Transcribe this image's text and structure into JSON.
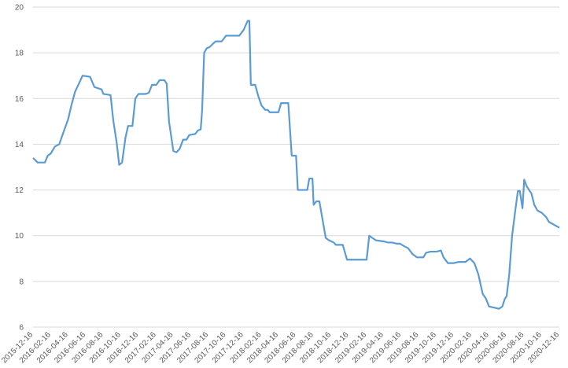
{
  "chart_data": {
    "type": "line",
    "color": "#5b9bd5",
    "grid": true,
    "xlim": [
      "2015-12-16",
      "2020-12-16"
    ],
    "xticks": [
      "2015-12-16",
      "2016-02-16",
      "2016-04-16",
      "2016-06-16",
      "2016-08-16",
      "2016-10-16",
      "2016-12-16",
      "2017-02-16",
      "2017-04-16",
      "2017-06-16",
      "2017-08-16",
      "2017-10-16",
      "2017-12-16",
      "2018-02-16",
      "2018-04-16",
      "2018-06-16",
      "2018-08-16",
      "2018-10-16",
      "2018-12-16",
      "2019-02-16",
      "2019-04-16",
      "2019-06-16",
      "2019-08-16",
      "2019-10-16",
      "2019-12-16",
      "2020-02-16",
      "2020-04-16",
      "2020-06-16",
      "2020-08-16",
      "2020-10-16",
      "2020-12-16"
    ],
    "ylim": [
      6,
      20
    ],
    "yticks": [
      6,
      8,
      10,
      12,
      14,
      16,
      18,
      20
    ],
    "x": [
      "2015-12-16",
      "2016-01-01",
      "2016-01-26",
      "2016-02-05",
      "2016-02-16",
      "2016-03-01",
      "2016-03-16",
      "2016-03-27",
      "2016-04-16",
      "2016-04-27",
      "2016-05-10",
      "2016-05-25",
      "2016-06-05",
      "2016-07-01",
      "2016-07-16",
      "2016-08-10",
      "2016-08-16",
      "2016-09-10",
      "2016-09-20",
      "2016-10-01",
      "2016-10-10",
      "2016-10-20",
      "2016-11-01",
      "2016-11-10",
      "2016-11-25",
      "2016-12-05",
      "2016-12-16",
      "2017-01-10",
      "2017-01-21",
      "2017-02-01",
      "2017-02-16",
      "2017-02-27",
      "2017-03-16",
      "2017-03-24",
      "2017-04-01",
      "2017-04-16",
      "2017-04-27",
      "2017-05-08",
      "2017-05-20",
      "2017-06-01",
      "2017-06-10",
      "2017-07-01",
      "2017-07-10",
      "2017-07-20",
      "2017-07-25",
      "2017-08-01",
      "2017-08-10",
      "2017-08-20",
      "2017-09-01",
      "2017-09-10",
      "2017-10-01",
      "2017-10-16",
      "2017-12-01",
      "2017-12-16",
      "2017-12-30",
      "2018-01-05",
      "2018-01-10",
      "2018-01-25",
      "2018-02-05",
      "2018-02-16",
      "2018-03-01",
      "2018-03-10",
      "2018-03-16",
      "2018-04-16",
      "2018-04-25",
      "2018-05-20",
      "2018-06-01",
      "2018-06-16",
      "2018-06-22",
      "2018-07-25",
      "2018-08-01",
      "2018-08-12",
      "2018-08-16",
      "2018-08-25",
      "2018-09-05",
      "2018-09-16",
      "2018-09-27",
      "2018-10-08",
      "2018-10-25",
      "2018-11-01",
      "2018-11-25",
      "2018-12-10",
      "2019-02-16",
      "2019-02-25",
      "2019-03-08",
      "2019-03-20",
      "2019-04-16",
      "2019-05-01",
      "2019-05-16",
      "2019-06-01",
      "2019-06-12",
      "2019-06-25",
      "2019-07-10",
      "2019-07-25",
      "2019-08-10",
      "2019-09-01",
      "2019-09-10",
      "2019-09-25",
      "2019-10-16",
      "2019-11-01",
      "2019-11-10",
      "2019-11-25",
      "2019-12-16",
      "2020-01-01",
      "2020-01-25",
      "2020-02-10",
      "2020-02-25",
      "2020-03-10",
      "2020-03-25",
      "2020-04-05",
      "2020-04-16",
      "2020-05-05",
      "2020-05-20",
      "2020-06-01",
      "2020-06-10",
      "2020-06-16",
      "2020-06-25",
      "2020-07-05",
      "2020-07-16",
      "2020-07-25",
      "2020-08-01",
      "2020-08-10",
      "2020-08-16",
      "2020-08-25",
      "2020-09-10",
      "2020-09-20",
      "2020-10-01",
      "2020-10-16",
      "2020-11-01",
      "2020-11-10",
      "2020-12-16"
    ],
    "values": [
      13.4,
      13.2,
      13.2,
      13.5,
      13.6,
      13.9,
      14.0,
      14.4,
      15.1,
      15.7,
      16.3,
      16.7,
      17.0,
      16.95,
      16.5,
      16.4,
      16.2,
      16.15,
      15.0,
      14.1,
      13.1,
      13.2,
      14.3,
      14.8,
      14.8,
      16.0,
      16.2,
      16.2,
      16.25,
      16.6,
      16.6,
      16.8,
      16.8,
      16.65,
      15.0,
      13.7,
      13.65,
      13.8,
      14.2,
      14.2,
      14.4,
      14.45,
      14.6,
      14.65,
      15.5,
      18.0,
      18.2,
      18.25,
      18.4,
      18.5,
      18.5,
      18.75,
      18.75,
      19.0,
      19.4,
      19.4,
      16.6,
      16.6,
      16.1,
      15.7,
      15.5,
      15.5,
      15.4,
      15.4,
      15.8,
      15.8,
      13.5,
      13.5,
      12.0,
      12.0,
      12.5,
      12.5,
      11.35,
      11.5,
      11.5,
      10.7,
      9.9,
      9.8,
      9.7,
      9.6,
      9.6,
      8.95,
      8.95,
      10.0,
      9.9,
      9.8,
      9.75,
      9.7,
      9.7,
      9.65,
      9.65,
      9.55,
      9.45,
      9.2,
      9.05,
      9.05,
      9.25,
      9.3,
      9.3,
      9.35,
      9.05,
      8.8,
      8.8,
      8.85,
      8.85,
      9.0,
      8.8,
      8.3,
      7.45,
      7.25,
      6.9,
      6.85,
      6.8,
      6.9,
      7.25,
      7.35,
      8.3,
      10.0,
      11.1,
      11.95,
      11.95,
      11.2,
      12.45,
      12.15,
      11.85,
      11.35,
      11.1,
      11.0,
      10.8,
      10.6,
      10.35
    ]
  }
}
